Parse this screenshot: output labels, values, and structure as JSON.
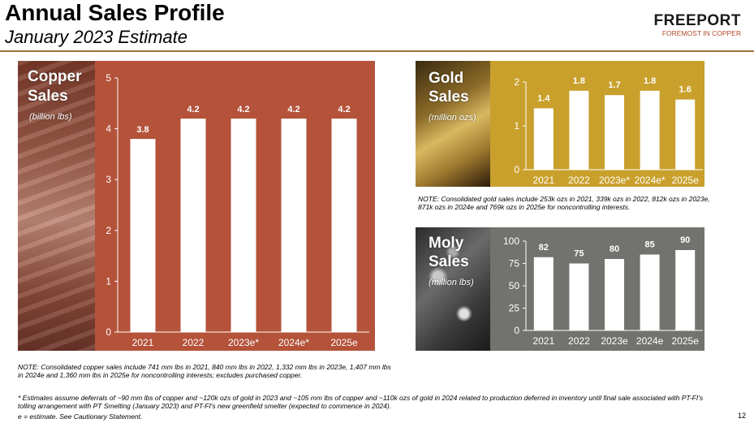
{
  "header": {
    "title": "Annual Sales Profile",
    "subtitle": "January 2023 Estimate",
    "logo_name": "FREEPORT",
    "logo_tagline": "FOREMOST IN COPPER"
  },
  "colors": {
    "copper_panel": "#b4523a",
    "gold_panel": "#c9a02c",
    "moly_panel": "#72726e",
    "bar": "#ffffff"
  },
  "panels": {
    "copper": {
      "label_line1": "Copper",
      "label_line2": "Sales",
      "unit": "(billion lbs)"
    },
    "gold": {
      "label_line1": "Gold",
      "label_line2": "Sales",
      "unit": "(million ozs)"
    },
    "moly": {
      "label_line1": "Moly",
      "label_line2": "Sales",
      "unit": "(million lbs)"
    }
  },
  "chart_data": [
    {
      "type": "bar",
      "title": "Copper Sales",
      "ylabel": "(billion lbs)",
      "categories": [
        "2021",
        "2022",
        "2023e*",
        "2024e*",
        "2025e"
      ],
      "values": [
        3.8,
        4.2,
        4.2,
        4.2,
        4.2
      ],
      "value_labels": [
        "3.8",
        "4.2",
        "4.2",
        "4.2",
        "4.2"
      ],
      "ylim": [
        0,
        5
      ],
      "yticks": [
        "0",
        "1",
        "2",
        "3",
        "4",
        "5"
      ],
      "ytick_values": [
        0,
        1,
        2,
        3,
        4,
        5
      ]
    },
    {
      "type": "bar",
      "title": "Gold Sales",
      "ylabel": "(million ozs)",
      "categories": [
        "2021",
        "2022",
        "2023e*",
        "2024e*",
        "2025e"
      ],
      "values": [
        1.4,
        1.8,
        1.7,
        1.8,
        1.6
      ],
      "value_labels": [
        "1.4",
        "1.8",
        "1.7",
        "1.8",
        "1.6"
      ],
      "ylim": [
        0,
        2
      ],
      "yticks": [
        "0",
        "1",
        "2"
      ],
      "ytick_values": [
        0,
        1,
        2
      ]
    },
    {
      "type": "bar",
      "title": "Moly Sales",
      "ylabel": "(million lbs)",
      "categories": [
        "2021",
        "2022",
        "2023e",
        "2024e",
        "2025e"
      ],
      "values": [
        82,
        75,
        80,
        85,
        90
      ],
      "value_labels": [
        "82",
        "75",
        "80",
        "85",
        "90"
      ],
      "ylim": [
        0,
        100
      ],
      "yticks": [
        "0",
        "25",
        "50",
        "75",
        "100"
      ],
      "ytick_values": [
        0,
        25,
        50,
        75,
        100
      ]
    }
  ],
  "notes": {
    "copper": "NOTE: Consolidated copper sales include 741 mm lbs in 2021, 840 mm lbs in 2022, 1,332 mm lbs in 2023e, 1,407 mm lbs in 2024e and 1,360 mm lbs in 2025e for noncontrolling interests; excludes purchased copper.",
    "gold": "NOTE: Consolidated gold sales include 253k ozs in 2021, 339k ozs in 2022, 812k ozs in 2023e, 871k ozs in 2024e and 769k ozs in 2025e for noncontrolling interests.",
    "footnote_star": "* Estimates assume deferrals of ~90 mm lbs of copper and ~120k ozs of gold in 2023 and ~105 mm lbs of copper and ~110k ozs of gold in 2024 related to production deferred in inventory until final sale associated with PT-FI's tolling arrangement with PT Smelting (January 2023) and PT-FI's new greenfield smelter (expected to commence in 2024).",
    "footnote_e": "e = estimate. See Cautionary Statement."
  },
  "page_number": "12"
}
